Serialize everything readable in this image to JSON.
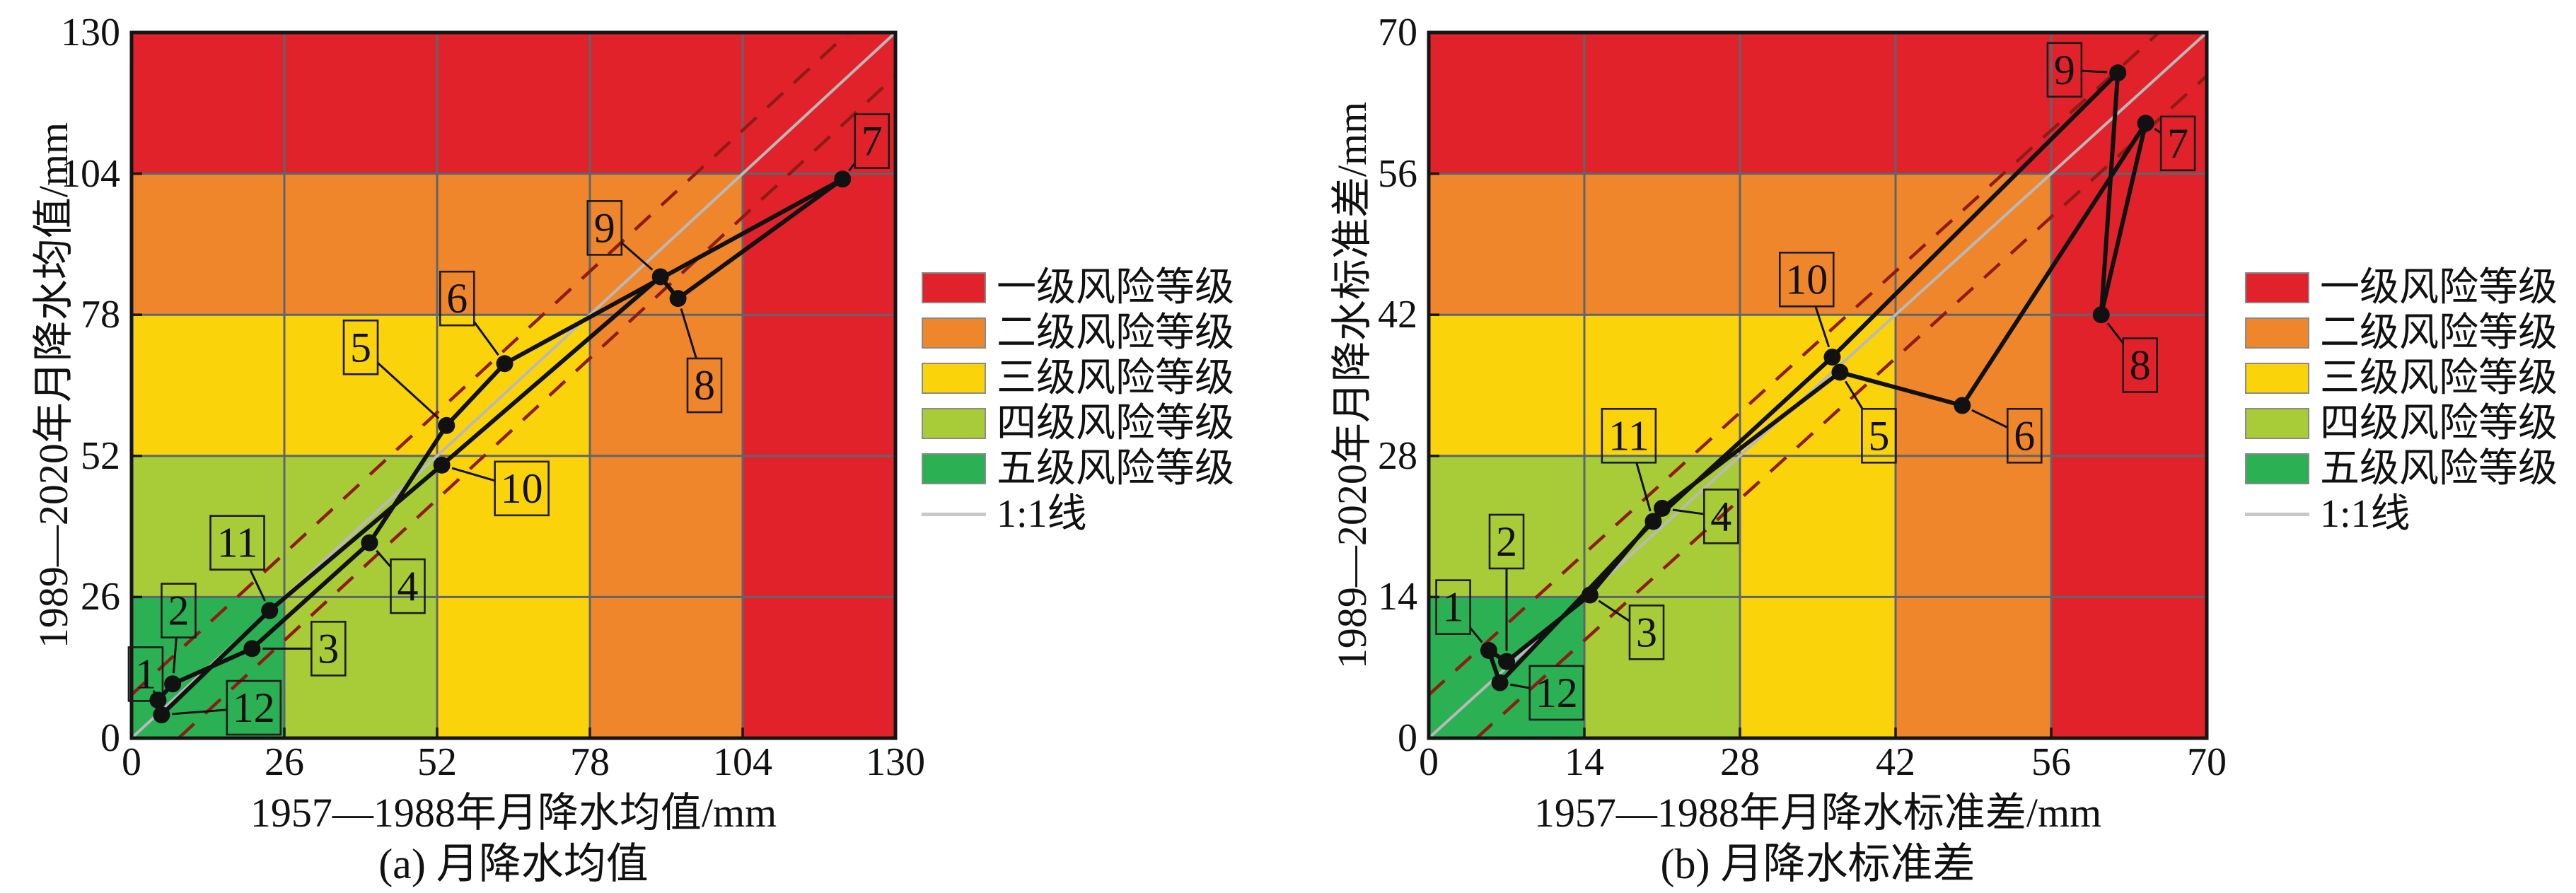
{
  "figure": {
    "background": "#FFFFFF",
    "description": "Two risk-matrix scatter charts comparing monthly precipitation statistics of 1957-1988 vs 1989-2020, months 1-12 connected as an annual loop over a 5x5 colored risk grid"
  },
  "colors": {
    "levels_low_to_high": [
      "#2BB054",
      "#A8CC38",
      "#FBD30B",
      "#F0862B",
      "#E1222A"
    ],
    "grid_line": "#5d666d",
    "plot_border": "#151515",
    "one_to_one_line": "#b9b9b9",
    "legend_line": "#c8c8c8",
    "dashed_band": "#8e1c16",
    "series": "#111111",
    "label_box_border": "#1b1b1b",
    "text": "#111111"
  },
  "legend": {
    "items": [
      {
        "label": "一级风险等级",
        "level_index": 4
      },
      {
        "label": "二级风险等级",
        "level_index": 3
      },
      {
        "label": "三级风险等级",
        "level_index": 2
      },
      {
        "label": "四级风险等级",
        "level_index": 1
      },
      {
        "label": "五级风险等级",
        "level_index": 0
      }
    ],
    "line_label": "1:1线"
  },
  "chart_data": [
    {
      "type": "scatter",
      "title": "(a) 月降水均值",
      "xlabel": "1957—1988年月降水均值/mm",
      "ylabel": "1989—2020年月降水均值/mm",
      "xlim": [
        0,
        130
      ],
      "ylim": [
        0,
        130
      ],
      "xticks": [
        0,
        26,
        52,
        78,
        104,
        130
      ],
      "yticks": [
        0,
        26,
        52,
        78,
        104,
        130
      ],
      "grid": "5x5 risk matrix, cell color = level max(col,row)",
      "legend_position": "right of chart",
      "one_to_one": {
        "from": [
          0,
          0
        ],
        "to": [
          130,
          130
        ]
      },
      "dashed_lines": {
        "upper": {
          "from": [
            0,
            8
          ],
          "to": [
            122,
            130
          ]
        },
        "lower": {
          "from": [
            8,
            0
          ],
          "to": [
            130,
            122
          ]
        }
      },
      "points": [
        {
          "month": "1",
          "x": 4.5,
          "y": 7.0,
          "box_cx": 2.4,
          "box_cy": 11.8
        },
        {
          "month": "2",
          "x": 7.0,
          "y": 10.0,
          "box_cx": 8.0,
          "box_cy": 23.5
        },
        {
          "month": "3",
          "x": 20.5,
          "y": 16.5,
          "box_cx": 33.5,
          "box_cy": 16.5
        },
        {
          "month": "4",
          "x": 40.5,
          "y": 36.0,
          "box_cx": 47.0,
          "box_cy": 28.0
        },
        {
          "month": "5",
          "x": 53.6,
          "y": 57.6,
          "box_cx": 39.0,
          "box_cy": 72.0
        },
        {
          "month": "6",
          "x": 63.5,
          "y": 69.0,
          "box_cx": 55.4,
          "box_cy": 81.0
        },
        {
          "month": "7",
          "x": 121.0,
          "y": 103.0,
          "box_cx": 126.0,
          "box_cy": 110.0
        },
        {
          "month": "8",
          "x": 93.0,
          "y": 81.0,
          "box_cx": 97.5,
          "box_cy": 65.0
        },
        {
          "month": "9",
          "x": 90.0,
          "y": 85.0,
          "box_cx": 80.5,
          "box_cy": 94.0
        },
        {
          "month": "10",
          "x": 52.8,
          "y": 50.3,
          "box_cx": 66.4,
          "box_cy": 46.0
        },
        {
          "month": "11",
          "x": 23.5,
          "y": 23.5,
          "box_cx": 18.0,
          "box_cy": 36.0
        },
        {
          "month": "12",
          "x": 5.1,
          "y": 4.3,
          "box_cx": 20.8,
          "box_cy": 5.6
        }
      ],
      "series_connection": "months connected in order 1-12 and closed back to 1"
    },
    {
      "type": "scatter",
      "title": "(b) 月降水标准差",
      "xlabel": "1957—1988年月降水标准差/mm",
      "ylabel": "1989—2020年月降水标准差/mm",
      "xlim": [
        0,
        70
      ],
      "ylim": [
        0,
        70
      ],
      "xticks": [
        0,
        14,
        28,
        42,
        56,
        70
      ],
      "yticks": [
        0,
        14,
        28,
        42,
        56,
        70
      ],
      "grid": "5x5 risk matrix, cell color = level max(col,row)",
      "legend_position": "right of chart",
      "one_to_one": {
        "from": [
          0,
          0
        ],
        "to": [
          70,
          70
        ]
      },
      "dashed_lines": {
        "upper": {
          "from": [
            0,
            4.3
          ],
          "to": [
            65.7,
            70
          ]
        },
        "lower": {
          "from": [
            4.3,
            0
          ],
          "to": [
            70,
            65.7
          ]
        }
      },
      "points": [
        {
          "month": "1",
          "x": 5.4,
          "y": 8.7,
          "box_cx": 2.2,
          "box_cy": 13.0
        },
        {
          "month": "2",
          "x": 7.0,
          "y": 7.6,
          "box_cx": 7.0,
          "box_cy": 19.5
        },
        {
          "month": "3",
          "x": 14.5,
          "y": 14.2,
          "box_cx": 19.6,
          "box_cy": 10.5
        },
        {
          "month": "4",
          "x": 21.0,
          "y": 22.8,
          "box_cx": 26.3,
          "box_cy": 22.0
        },
        {
          "month": "5",
          "x": 37.0,
          "y": 36.3,
          "box_cx": 40.5,
          "box_cy": 30.0
        },
        {
          "month": "6",
          "x": 48.0,
          "y": 33.0,
          "box_cx": 53.6,
          "box_cy": 30.0
        },
        {
          "month": "7",
          "x": 64.5,
          "y": 61.0,
          "box_cx": 67.4,
          "box_cy": 59.0
        },
        {
          "month": "8",
          "x": 60.5,
          "y": 42.0,
          "box_cx": 64.0,
          "box_cy": 37.0
        },
        {
          "month": "9",
          "x": 62.0,
          "y": 66.0,
          "box_cx": 57.2,
          "box_cy": 66.3
        },
        {
          "month": "10",
          "x": 36.3,
          "y": 37.8,
          "box_cx": 34.0,
          "box_cy": 45.5
        },
        {
          "month": "11",
          "x": 20.2,
          "y": 21.5,
          "box_cx": 18.0,
          "box_cy": 30.0
        },
        {
          "month": "12",
          "x": 6.4,
          "y": 5.5,
          "box_cx": 11.5,
          "box_cy": 4.5
        }
      ],
      "series_connection": "months connected in order 1-12 and closed back to 1"
    }
  ]
}
